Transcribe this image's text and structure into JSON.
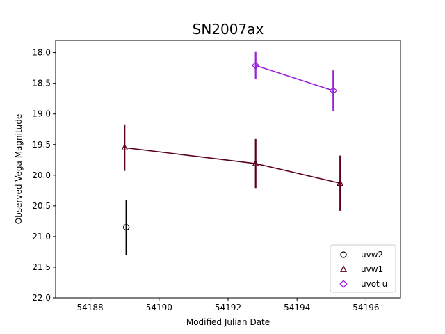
{
  "chart_data": {
    "type": "scatter",
    "title": "SN2007ax",
    "xlabel": "Modified Julian Date",
    "ylabel": "Observed Vega Magnitude",
    "xlim": [
      54187.0,
      54197.0
    ],
    "ylim": [
      22.0,
      17.8
    ],
    "y_inverted": true,
    "x_ticks": [
      54188,
      54190,
      54192,
      54194,
      54196
    ],
    "y_ticks": [
      18.0,
      18.5,
      19.0,
      19.5,
      20.0,
      20.5,
      21.0,
      21.5,
      22.0
    ],
    "y_tick_labels": [
      "18.0",
      "18.5",
      "19.0",
      "19.5",
      "20.0",
      "20.5",
      "21.0",
      "21.5",
      "22.0"
    ],
    "grid": false,
    "legend_position": "lower-right",
    "series": [
      {
        "name": "uvw2",
        "marker": "circle",
        "color": "#000000",
        "connected": false,
        "points": [
          {
            "x": 54189.05,
            "y": 20.85,
            "err": 0.45
          }
        ]
      },
      {
        "name": "uvw1",
        "marker": "triangle",
        "color": "#5c0020",
        "connected": true,
        "points": [
          {
            "x": 54189.0,
            "y": 19.55,
            "err": 0.38
          },
          {
            "x": 54192.8,
            "y": 19.81,
            "err": 0.4
          },
          {
            "x": 54195.25,
            "y": 20.13,
            "err": 0.45
          }
        ]
      },
      {
        "name": "uvot u",
        "marker": "diamond",
        "color": "#9a1fd8",
        "connected": true,
        "points": [
          {
            "x": 54192.8,
            "y": 18.21,
            "err": 0.22
          },
          {
            "x": 54195.05,
            "y": 18.62,
            "err": 0.33
          }
        ]
      }
    ]
  }
}
